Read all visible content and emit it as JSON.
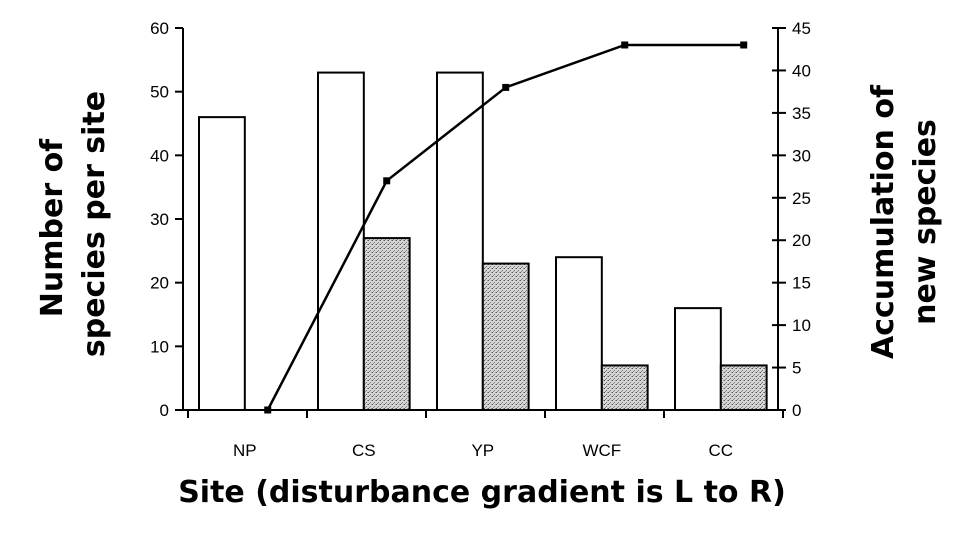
{
  "chart_data": {
    "type": "bar",
    "categories": [
      "NP",
      "CS",
      "YP",
      "WCF",
      "CC"
    ],
    "series": [
      {
        "name": "",
        "kind": "bar",
        "axis": "left",
        "style": "open",
        "values": [
          46,
          53,
          53,
          24,
          16
        ]
      },
      {
        "name": "",
        "kind": "bar",
        "axis": "left",
        "style": "stippled",
        "values": [
          0,
          27,
          23,
          7,
          7
        ]
      },
      {
        "name": "",
        "kind": "line",
        "axis": "right",
        "values": [
          0,
          27,
          38,
          43,
          43
        ]
      }
    ],
    "ylabel": [
      "Number of",
      "species per site"
    ],
    "y2label": [
      "Accumulation of",
      "new species"
    ],
    "xlabel": "Site (disturbance gradient is L to R)",
    "ylim": [
      0,
      60
    ],
    "y2lim": [
      0,
      45
    ],
    "yticks": [
      "0",
      "10",
      "20",
      "30",
      "40",
      "50",
      "60"
    ],
    "y2ticks": [
      "0",
      "5",
      "10",
      "15",
      "20",
      "25",
      "30",
      "35",
      "40",
      "45"
    ],
    "grid": false,
    "legend": "none",
    "colors": {
      "open_bar": "#ffffff",
      "stippled_bar": "#c8c8c8",
      "line": "#000000"
    }
  }
}
